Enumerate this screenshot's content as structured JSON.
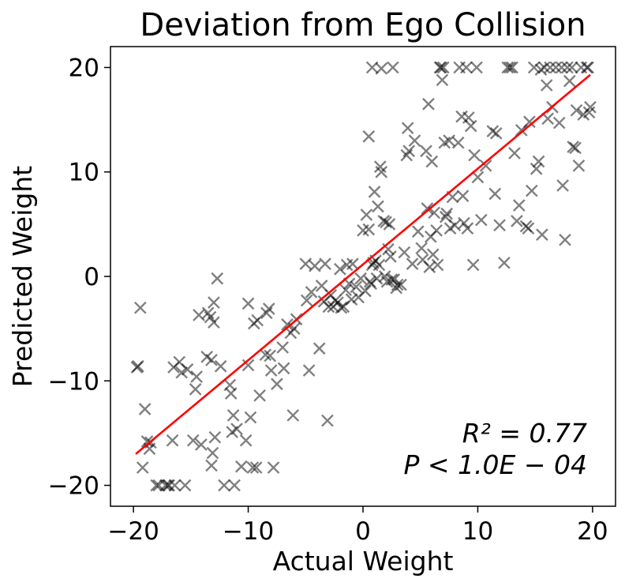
{
  "chart_data": {
    "type": "scatter",
    "title": "Deviation from Ego Collision",
    "xlabel": "Actual Weight",
    "ylabel": "Predicted Weight",
    "xlim": [
      -22,
      22
    ],
    "ylim": [
      -22,
      22
    ],
    "xticks": [
      -20,
      -10,
      0,
      10,
      20
    ],
    "yticks": [
      -20,
      -10,
      0,
      10,
      20
    ],
    "xtick_labels": [
      "−20",
      "−10",
      "0",
      "10",
      "20"
    ],
    "ytick_labels": [
      "−20",
      "−10",
      "0",
      "10",
      "20"
    ],
    "grid": false,
    "marker": "x",
    "marker_color": "#000000",
    "marker_alpha": 0.5,
    "fit_line_color": "#ff0000",
    "fit_line": {
      "x": [
        -19.8,
        19.8
      ],
      "y": [
        -17.0,
        19.3
      ]
    },
    "annotations": [
      "R² = 0.77",
      "P < 1.0E − 04"
    ],
    "points": [
      [
        -19.6,
        -8.6
      ],
      [
        -19.7,
        -8.7
      ],
      [
        -19.4,
        -3.0
      ],
      [
        -19.2,
        -18.3
      ],
      [
        -19.0,
        -12.7
      ],
      [
        -18.8,
        -15.8
      ],
      [
        -18.6,
        -16.5
      ],
      [
        -18.5,
        -15.9
      ],
      [
        -18.0,
        -20.0
      ],
      [
        -17.8,
        -20.0
      ],
      [
        -17.2,
        -20.0
      ],
      [
        -17.0,
        -20.0
      ],
      [
        -16.9,
        -20.0
      ],
      [
        -16.6,
        -15.7
      ],
      [
        -16.5,
        -8.7
      ],
      [
        -16.4,
        -20.0
      ],
      [
        -16.0,
        -8.2
      ],
      [
        -15.8,
        -9.2
      ],
      [
        -15.5,
        -20.0
      ],
      [
        -15.3,
        -8.9
      ],
      [
        -14.8,
        -15.7
      ],
      [
        -14.6,
        -10.8
      ],
      [
        -14.5,
        -9.6
      ],
      [
        -14.3,
        -3.7
      ],
      [
        -14.1,
        -16.1
      ],
      [
        -13.6,
        -7.7
      ],
      [
        -13.5,
        -3.5
      ],
      [
        -13.3,
        -3.9
      ],
      [
        -13.2,
        -8.0
      ],
      [
        -13.1,
        -16.9
      ],
      [
        -13.0,
        -2.5
      ],
      [
        -13.0,
        -4.4
      ],
      [
        -13.2,
        -18.1
      ],
      [
        -12.9,
        -15.4
      ],
      [
        -12.7,
        -0.2
      ],
      [
        -12.4,
        -8.6
      ],
      [
        -12.1,
        -20.0
      ],
      [
        -11.6,
        -10.4
      ],
      [
        -11.5,
        -11.2
      ],
      [
        -11.3,
        -13.3
      ],
      [
        -11.4,
        -14.9
      ],
      [
        -11.2,
        -20.0
      ],
      [
        -11.0,
        -14.6
      ],
      [
        -10.6,
        -18.2
      ],
      [
        -10.2,
        -15.7
      ],
      [
        -10.0,
        -2.6
      ],
      [
        -10.0,
        -8.5
      ],
      [
        -9.8,
        -13.5
      ],
      [
        -9.6,
        -18.3
      ],
      [
        -9.5,
        -4.5
      ],
      [
        -9.3,
        -18.3
      ],
      [
        -9.2,
        -4.2
      ],
      [
        -9.0,
        -11.4
      ],
      [
        -8.5,
        -7.5
      ],
      [
        -8.4,
        -3.5
      ],
      [
        -8.2,
        -3.1
      ],
      [
        -8.1,
        -7.6
      ],
      [
        -8.0,
        -9.0
      ],
      [
        -7.8,
        -18.3
      ],
      [
        -7.5,
        -10.3
      ],
      [
        -7.0,
        -6.8
      ],
      [
        -6.9,
        -8.8
      ],
      [
        -6.6,
        -4.6
      ],
      [
        -6.3,
        -5.4
      ],
      [
        -6.1,
        -13.3
      ],
      [
        -6.0,
        -5.0
      ],
      [
        -5.8,
        -4.1
      ],
      [
        -5.0,
        1.2
      ],
      [
        -4.9,
        -2.3
      ],
      [
        -4.7,
        -9.0
      ],
      [
        -4.5,
        -1.5
      ],
      [
        -4.2,
        1.0
      ],
      [
        -3.8,
        -6.9
      ],
      [
        -3.6,
        -0.9
      ],
      [
        -3.4,
        -2.4
      ],
      [
        -3.3,
        1.2
      ],
      [
        -3.1,
        -13.8
      ],
      [
        -3.0,
        -2.9
      ],
      [
        -2.8,
        -1.8
      ],
      [
        -2.6,
        -2.9
      ],
      [
        -2.4,
        -2.3
      ],
      [
        -2.2,
        -2.5
      ],
      [
        -2.0,
        0.7
      ],
      [
        -1.9,
        -3.0
      ],
      [
        -1.7,
        -2.9
      ],
      [
        -1.5,
        -1.3
      ],
      [
        -1.4,
        1.1
      ],
      [
        -1.2,
        -0.7
      ],
      [
        -1.0,
        -2.2
      ],
      [
        -0.9,
        1.2
      ],
      [
        -0.6,
        -1.0
      ],
      [
        -0.4,
        -2.0
      ],
      [
        -0.2,
        -0.2
      ],
      [
        0.0,
        4.4
      ],
      [
        0.2,
        -1.4
      ],
      [
        0.3,
        5.9
      ],
      [
        0.5,
        4.5
      ],
      [
        0.5,
        13.4
      ],
      [
        0.6,
        -0.5
      ],
      [
        0.7,
        -0.7
      ],
      [
        0.8,
        1.1
      ],
      [
        0.8,
        20.0
      ],
      [
        0.9,
        1.3
      ],
      [
        1.0,
        8.1
      ],
      [
        1.1,
        1.5
      ],
      [
        1.2,
        -0.2
      ],
      [
        1.3,
        6.7
      ],
      [
        1.4,
        1.1
      ],
      [
        1.5,
        10.5
      ],
      [
        1.6,
        19.9
      ],
      [
        1.6,
        10.0
      ],
      [
        1.8,
        5.3
      ],
      [
        1.9,
        0.0
      ],
      [
        2.0,
        5.2
      ],
      [
        2.1,
        -0.5
      ],
      [
        2.2,
        2.6
      ],
      [
        2.3,
        5.0
      ],
      [
        2.4,
        1.9
      ],
      [
        2.5,
        -0.3
      ],
      [
        2.6,
        20.0
      ],
      [
        2.7,
        -0.3
      ],
      [
        2.9,
        -1.1
      ],
      [
        3.0,
        -0.8
      ],
      [
        3.3,
        -0.8
      ],
      [
        3.6,
        2.3
      ],
      [
        3.8,
        11.6
      ],
      [
        3.9,
        14.2
      ],
      [
        4.0,
        12.0
      ],
      [
        4.3,
        1.2
      ],
      [
        4.5,
        13.0
      ],
      [
        4.8,
        4.3
      ],
      [
        5.1,
        2.7
      ],
      [
        5.2,
        1.6
      ],
      [
        5.5,
        12.0
      ],
      [
        5.6,
        6.5
      ],
      [
        5.7,
        16.5
      ],
      [
        5.8,
        0.9
      ],
      [
        5.9,
        3.8
      ],
      [
        6.0,
        11.0
      ],
      [
        6.1,
        2.1
      ],
      [
        6.2,
        6.1
      ],
      [
        6.4,
        4.4
      ],
      [
        6.5,
        1.1
      ],
      [
        6.7,
        20.0
      ],
      [
        6.9,
        18.8
      ],
      [
        6.8,
        20.0
      ],
      [
        7.0,
        20.0
      ],
      [
        7.1,
        12.8
      ],
      [
        7.2,
        5.7
      ],
      [
        7.3,
        6.0
      ],
      [
        7.5,
        13.0
      ],
      [
        7.6,
        4.6
      ],
      [
        7.8,
        7.6
      ],
      [
        8.0,
        4.9
      ],
      [
        8.3,
        12.8
      ],
      [
        8.4,
        20.0
      ],
      [
        8.6,
        15.3
      ],
      [
        8.7,
        7.7
      ],
      [
        8.8,
        5.1
      ],
      [
        9.0,
        20.0
      ],
      [
        9.1,
        4.6
      ],
      [
        9.2,
        15.2
      ],
      [
        9.4,
        14.4
      ],
      [
        9.6,
        1.1
      ],
      [
        9.7,
        11.6
      ],
      [
        9.9,
        20.0
      ],
      [
        10.0,
        9.5
      ],
      [
        10.3,
        5.4
      ],
      [
        10.7,
        10.6
      ],
      [
        11.3,
        13.9
      ],
      [
        11.5,
        7.9
      ],
      [
        11.6,
        13.7
      ],
      [
        11.9,
        4.9
      ],
      [
        12.3,
        1.3
      ],
      [
        12.6,
        20.0
      ],
      [
        12.8,
        20.0
      ],
      [
        13.0,
        20.0
      ],
      [
        13.2,
        11.8
      ],
      [
        13.4,
        5.3
      ],
      [
        13.6,
        6.8
      ],
      [
        13.8,
        14.0
      ],
      [
        14.2,
        4.8
      ],
      [
        14.4,
        4.6
      ],
      [
        14.5,
        14.8
      ],
      [
        14.7,
        8.2
      ],
      [
        14.9,
        20.0
      ],
      [
        15.1,
        10.3
      ],
      [
        15.3,
        11.0
      ],
      [
        15.5,
        19.8
      ],
      [
        15.6,
        4.0
      ],
      [
        15.8,
        20.0
      ],
      [
        16.0,
        18.3
      ],
      [
        16.1,
        15.1
      ],
      [
        16.3,
        20.0
      ],
      [
        16.5,
        16.2
      ],
      [
        16.8,
        20.0
      ],
      [
        17.1,
        14.7
      ],
      [
        17.3,
        20.0
      ],
      [
        17.4,
        8.7
      ],
      [
        17.6,
        3.5
      ],
      [
        17.8,
        20.0
      ],
      [
        18.0,
        18.7
      ],
      [
        18.2,
        20.0
      ],
      [
        18.3,
        12.4
      ],
      [
        18.5,
        12.3
      ],
      [
        18.6,
        15.9
      ],
      [
        18.8,
        10.6
      ],
      [
        19.0,
        20.0
      ],
      [
        19.2,
        15.5
      ],
      [
        19.5,
        20.0
      ],
      [
        19.6,
        20.0
      ],
      [
        19.7,
        15.7
      ],
      [
        19.8,
        16.2
      ]
    ]
  }
}
